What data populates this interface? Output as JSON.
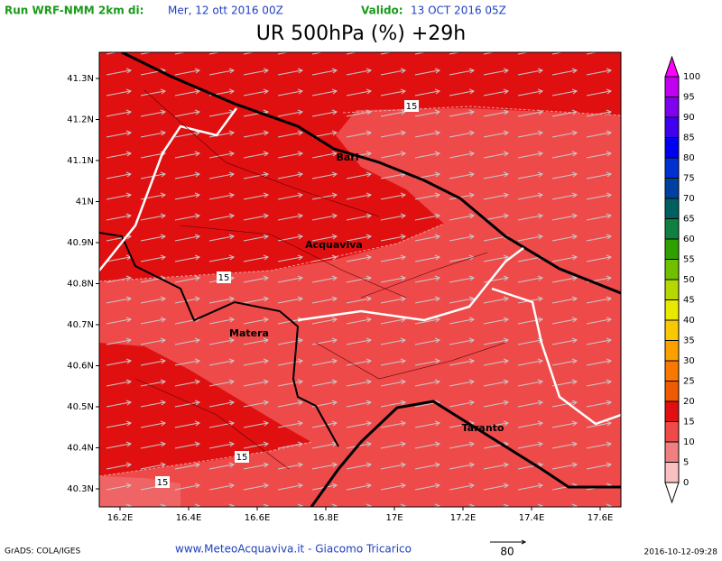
{
  "header": {
    "run_label": "Run WRF-NMM 2km di:",
    "run_date": "Mer, 12 ott 2016 00Z",
    "valid_label": "Valido:",
    "valid_date": "13 OCT 2016 05Z",
    "title": "UR 500hPa (%) +29h"
  },
  "map": {
    "lat_labels": [
      "41.3N",
      "41.2N",
      "41.1N",
      "41N",
      "40.9N",
      "40.8N",
      "40.7N",
      "40.6N",
      "40.5N",
      "40.4N",
      "40.3N"
    ],
    "lon_labels": [
      "16.2E",
      "16.4E",
      "16.6E",
      "16.8E",
      "17E",
      "17.2E",
      "17.4E",
      "17.6E"
    ],
    "places": [
      "Bari",
      "Acquaviva",
      "Matera",
      "Taranto"
    ],
    "contour_labels": [
      "15",
      "15",
      "15",
      "15"
    ]
  },
  "colorbar": {
    "labels": [
      "100",
      "95",
      "90",
      "85",
      "80",
      "75",
      "70",
      "65",
      "60",
      "55",
      "50",
      "45",
      "40",
      "35",
      "30",
      "25",
      "20",
      "15",
      "10",
      "5",
      "0"
    ],
    "colors": [
      "#ff00ff",
      "#c000f0",
      "#8000f0",
      "#4000f0",
      "#0000f0",
      "#0030d0",
      "#0040a0",
      "#006060",
      "#108040",
      "#30a000",
      "#70c000",
      "#b4d800",
      "#e8e800",
      "#f8c800",
      "#fca000",
      "#f87800",
      "#f05a00",
      "#e01010",
      "#ee4a4a",
      "#f08080",
      "#f8c0c0",
      "#ffffff"
    ]
  },
  "footer": {
    "software": "GrADS: COLA/IGES",
    "credit": "www.MeteoAcquaviva.it - Giacomo Tricarico",
    "vector_scale": "80",
    "timestamp": "2016-10-12-09:28"
  }
}
